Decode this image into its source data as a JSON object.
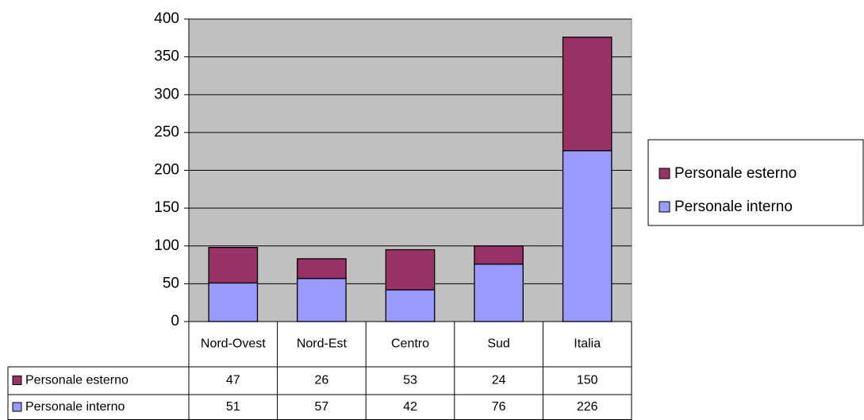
{
  "chart_data": {
    "type": "stacked_bar",
    "categories": [
      "Nord-Ovest",
      "Nord-Est",
      "Centro",
      "Sud",
      "Italia"
    ],
    "series": [
      {
        "name": "Personale interno",
        "color": "#9999ff",
        "values": [
          51,
          57,
          42,
          76,
          226
        ]
      },
      {
        "name": "Personale esterno",
        "color": "#993366",
        "values": [
          47,
          26,
          53,
          24,
          150
        ]
      }
    ],
    "ylim": [
      0,
      400
    ],
    "yticks": [
      0,
      50,
      100,
      150,
      200,
      250,
      300,
      350,
      400
    ],
    "grid": true,
    "plot_background": "#c0c0c0",
    "legend": "right",
    "data_table": true
  }
}
